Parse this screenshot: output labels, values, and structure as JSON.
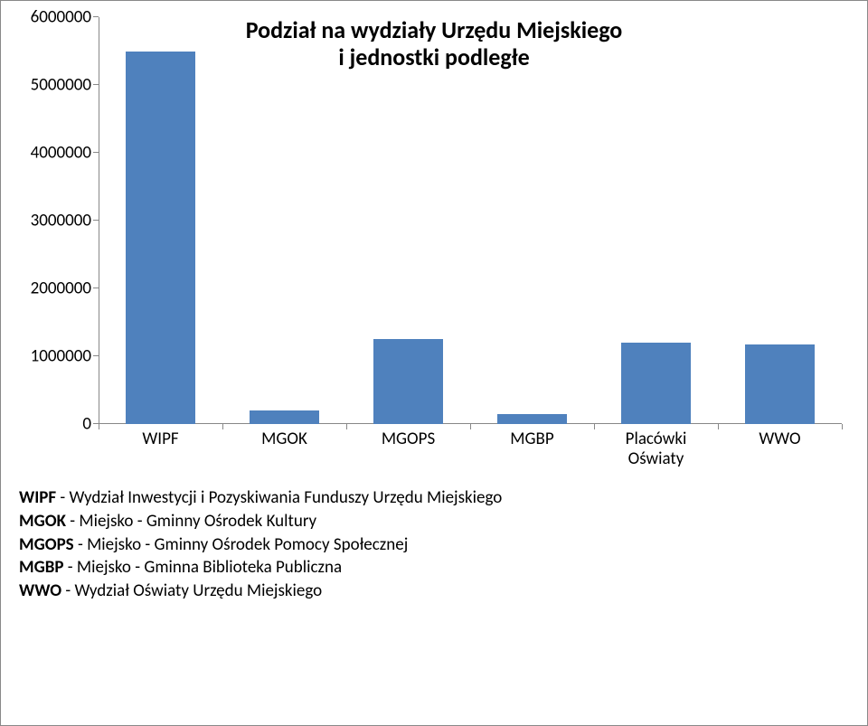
{
  "chart": {
    "type": "bar",
    "title_line1": "Podział na wydziały Urzędu Miejskiego",
    "title_line2": "i jednostki podległe",
    "title_fontsize": 26,
    "categories": [
      {
        "label_line1": "WIPF",
        "label_line2": "",
        "value": 5500000
      },
      {
        "label_line1": "MGOK",
        "label_line2": "",
        "value": 200000
      },
      {
        "label_line1": "MGOPS",
        "label_line2": "",
        "value": 1250000
      },
      {
        "label_line1": "MGBP",
        "label_line2": "",
        "value": 150000
      },
      {
        "label_line1": "Placówki",
        "label_line2": "Oświaty",
        "value": 1200000
      },
      {
        "label_line1": "WWO",
        "label_line2": "",
        "value": 1180000
      }
    ],
    "bar_color": "#4f81bd",
    "axis_color": "#888888",
    "y_min": 0,
    "y_max": 6000000,
    "y_step": 1000000,
    "y_ticks": [
      "0",
      "1000000",
      "2000000",
      "3000000",
      "4000000",
      "5000000",
      "6000000"
    ],
    "axis_fontsize": 19,
    "background_color": "#ffffff"
  },
  "legend": {
    "fontsize": 19,
    "items": [
      {
        "abbr": "WIPF",
        "sep": " - ",
        "desc": "Wydział Inwestycji i Pozyskiwania Funduszy Urzędu Miejskiego"
      },
      {
        "abbr": "MGOK",
        "sep": " - ",
        "desc": "Miejsko - Gminny Ośrodek Kultury"
      },
      {
        "abbr": "MGOPS",
        "sep": " - ",
        "desc": "Miejsko - Gminny Ośrodek Pomocy Społecznej"
      },
      {
        "abbr": "MGBP",
        "sep": " - ",
        "desc": "Miejsko - Gminna Biblioteka Publiczna"
      },
      {
        "abbr": "WWO",
        "sep": " - ",
        "desc": "Wydział Oświaty Urzędu Miejskiego"
      }
    ]
  }
}
